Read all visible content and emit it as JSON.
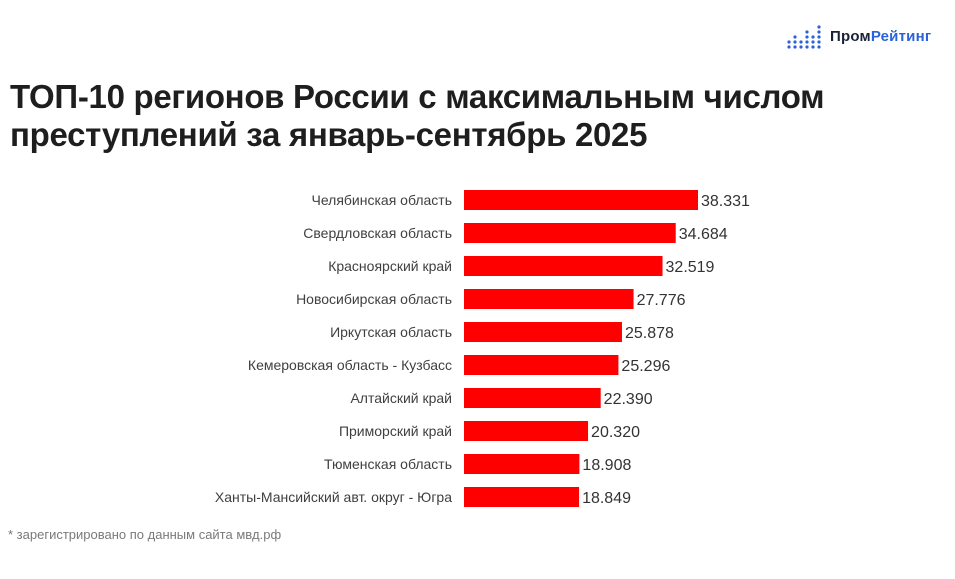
{
  "logo": {
    "name_part1": "Пром",
    "name_part2": "Рейтинг",
    "icon": "bar-dots-icon",
    "colors": {
      "dark": "#1a2238",
      "accent": "#2a63d9"
    }
  },
  "title_lines": [
    "ТОП-10 регионов России с максимальным числом",
    "преступлений за январь-сентябрь 2025"
  ],
  "footnote": "* зарегистрировано по данным сайта мвд.рф",
  "chart_data": {
    "type": "bar",
    "orientation": "horizontal",
    "title": "ТОП-10 регионов России с максимальным числом преступлений за январь-сентябрь 2025",
    "categories": [
      "Челябинская область",
      "Свердловская область",
      "Красноярский край",
      "Новосибирская область",
      "Иркутская область",
      "Кемеровская область - Кузбасс",
      "Алтайский край",
      "Приморский край",
      "Тюменская область",
      "Ханты-Мансийский авт. округ - Югра"
    ],
    "values": [
      38331,
      34684,
      32519,
      27776,
      25878,
      25296,
      22390,
      20320,
      18908,
      18849
    ],
    "value_labels": [
      "38.331",
      "34.684",
      "32.519",
      "27.776",
      "25.878",
      "25.296",
      "22.390",
      "20.320",
      "18.908",
      "18.849"
    ],
    "xlim": [
      0,
      38331
    ],
    "grid": false,
    "legend": "none",
    "bar_color": "#ff0000"
  }
}
